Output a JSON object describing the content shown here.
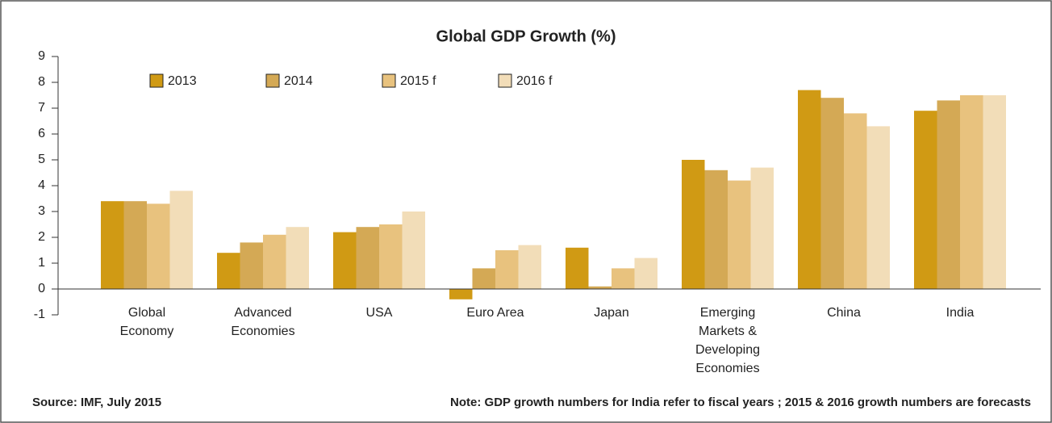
{
  "chart_data": {
    "type": "bar",
    "title": "Global GDP Growth (%)",
    "categories": [
      [
        "Global",
        "Economy"
      ],
      [
        "Advanced",
        "Economies"
      ],
      [
        "USA"
      ],
      [
        "Euro Area"
      ],
      [
        "Japan"
      ],
      [
        "Emerging",
        "Markets &",
        "Developing",
        "Economies"
      ],
      [
        "China"
      ],
      [
        "India"
      ]
    ],
    "series": [
      {
        "name": "2013",
        "color": "#d09a14",
        "values": [
          3.4,
          1.4,
          2.2,
          -0.4,
          1.6,
          5.0,
          7.7,
          6.9
        ]
      },
      {
        "name": "2014",
        "color": "#d4a955",
        "values": [
          3.4,
          1.8,
          2.4,
          0.8,
          0.1,
          4.6,
          7.4,
          7.3
        ]
      },
      {
        "name": "2015 f",
        "color": "#e8c27e",
        "values": [
          3.3,
          2.1,
          2.5,
          1.5,
          0.8,
          4.2,
          6.8,
          7.5
        ]
      },
      {
        "name": "2016 f",
        "color": "#f2ddb8",
        "values": [
          3.8,
          2.4,
          3.0,
          1.7,
          1.2,
          4.7,
          6.3,
          7.5
        ]
      }
    ],
    "ylim": [
      -1,
      9
    ],
    "yticks": [
      -1,
      0,
      1,
      2,
      3,
      4,
      5,
      6,
      7,
      8,
      9
    ],
    "legend": "top-left",
    "source": "Source: IMF, July 2015",
    "note": "Note: GDP growth numbers for India refer to fiscal years ; 2015 & 2016  growth numbers are  forecasts"
  }
}
